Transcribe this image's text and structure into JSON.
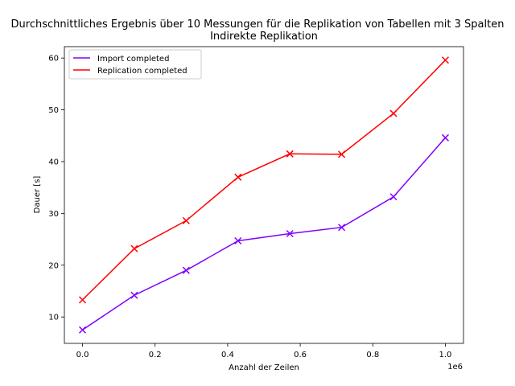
{
  "chart_data": {
    "type": "line",
    "title": "Durchschnittliches Ergebnis über 10 Messungen für die Replikation von Tabellen mit 3 Spalten",
    "subtitle": "Indirekte Replikation",
    "xlabel": "Anzahl der Zeilen",
    "ylabel": "Dauer [s]",
    "x_offset_text": "1e6",
    "xlim": [
      -0.05,
      1.05
    ],
    "ylim": [
      4.9,
      62.2
    ],
    "x_ticks": [
      0.0,
      0.2,
      0.4,
      0.6,
      0.8,
      1.0
    ],
    "x_tick_labels": [
      "0.0",
      "0.2",
      "0.4",
      "0.6",
      "0.8",
      "1.0"
    ],
    "y_ticks": [
      10,
      20,
      30,
      40,
      50,
      60
    ],
    "y_tick_labels": [
      "10",
      "20",
      "30",
      "40",
      "50",
      "60"
    ],
    "grid": false,
    "legend_position": "top-left",
    "x": [
      0.0,
      0.1428,
      0.2857,
      0.4285,
      0.5714,
      0.7142,
      0.8571,
      1.0
    ],
    "series": [
      {
        "name": "Import completed",
        "color": "#8000ff",
        "marker": "x",
        "values": [
          7.5,
          14.2,
          19.0,
          24.7,
          26.1,
          27.3,
          33.2,
          44.6
        ]
      },
      {
        "name": "Replication completed",
        "color": "#ff0000",
        "marker": "x",
        "values": [
          13.3,
          23.2,
          28.6,
          37.0,
          41.5,
          41.4,
          49.3,
          59.6
        ]
      }
    ]
  }
}
